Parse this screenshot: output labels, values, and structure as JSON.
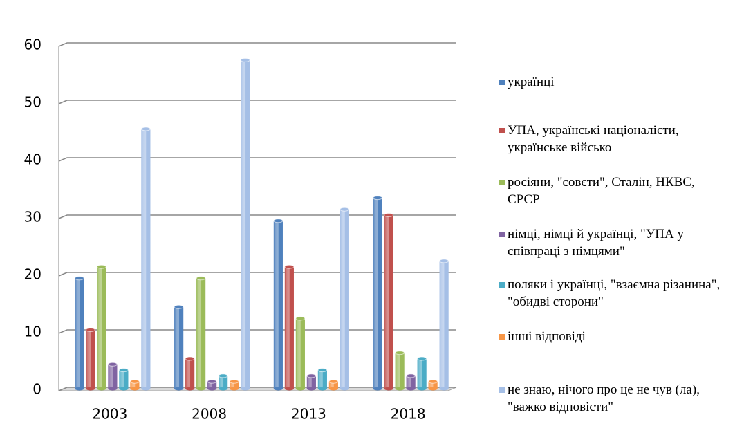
{
  "chart_data": {
    "type": "bar",
    "categories": [
      "2003",
      "2008",
      "2013",
      "2018"
    ],
    "series": [
      {
        "name": "українці",
        "color": "#4f81bd",
        "values": [
          19,
          14,
          29,
          33
        ]
      },
      {
        "name": "УПА, українські націоналісти, українське військо",
        "color": "#c0504d",
        "values": [
          10,
          5,
          21,
          30
        ]
      },
      {
        "name": "росіяни, \"совєти\", Сталін, НКВС, СРСР",
        "color": "#9bbb59",
        "values": [
          21,
          19,
          12,
          6
        ]
      },
      {
        "name": "німці, німці й українці, \"УПА у співпраці з німцями\"",
        "color": "#8064a2",
        "values": [
          4,
          1,
          2,
          2
        ]
      },
      {
        "name": "поляки і українці, \"взаємна різанина\", \"обидві сторони\"",
        "color": "#4bacc6",
        "values": [
          3,
          2,
          3,
          5
        ]
      },
      {
        "name": "інші відповіді",
        "color": "#f79646",
        "values": [
          1,
          1,
          1,
          1
        ]
      },
      {
        "name": "не знаю, нічого про це не чув (ла), \"важко відповісти\"",
        "color": "#a5bfe6",
        "values": [
          45,
          57,
          31,
          22
        ]
      }
    ],
    "ylim": [
      0,
      60
    ],
    "yticks": [
      0,
      10,
      20,
      30,
      40,
      50,
      60
    ],
    "grid": true,
    "legend": "right"
  }
}
